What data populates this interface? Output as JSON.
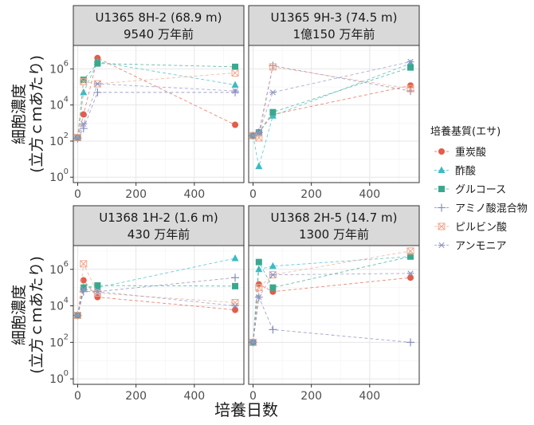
{
  "chart_data": {
    "type": "scatter",
    "facet_layout": "2x2",
    "xlabel": "培養日数",
    "ylabel_line1": "細胞濃度",
    "ylabel_line2": "(立方ｃｍあたり)",
    "xlim": [
      -15,
      570
    ],
    "xticks": [
      0,
      200,
      400
    ],
    "xtick_labels": [
      "0",
      "200",
      "400"
    ],
    "ylim_log10": [
      -0.3,
      7.3
    ],
    "yscale": "log",
    "yticks_exp": [
      0,
      2,
      4,
      6
    ],
    "ytick_labels": [
      {
        "base": "10",
        "exp": "0"
      },
      {
        "base": "10",
        "exp": "2"
      },
      {
        "base": "10",
        "exp": "4"
      },
      {
        "base": "10",
        "exp": "6"
      }
    ],
    "grid": true,
    "legend": {
      "title": "培養基質(エサ)",
      "placement": "right",
      "entries": [
        {
          "name": "重炭酸",
          "color": "#e35d4a",
          "marker": "circle"
        },
        {
          "name": "酢酸",
          "color": "#3bbbc4",
          "marker": "triangle"
        },
        {
          "name": "グルコース",
          "color": "#3aa88e",
          "marker": "square"
        },
        {
          "name": "アミノ酸混合物",
          "color": "#7f85b5",
          "marker": "plus"
        },
        {
          "name": "ピルビン酸",
          "color": "#f0a78e",
          "marker": "square-x"
        },
        {
          "name": "アンモニア",
          "color": "#8f96c2",
          "marker": "asterisk"
        }
      ]
    },
    "panels": [
      {
        "strip_line1": "U1365 8H-2 (68.9 m)",
        "strip_line2": "9540 万年前",
        "series": [
          {
            "name": "重炭酸",
            "x": [
              0,
              20,
              68,
              540
            ],
            "y": [
              150,
              3000,
              4000000,
              800
            ]
          },
          {
            "name": "酢酸",
            "x": [
              0,
              20,
              68,
              540
            ],
            "y": [
              160,
              50000,
              2500000,
              130000
            ]
          },
          {
            "name": "グルコース",
            "x": [
              0,
              20,
              68,
              540
            ],
            "y": [
              150,
              250000,
              2000000,
              1300000
            ]
          },
          {
            "name": "アミノ酸混合物",
            "x": [
              0,
              20,
              68,
              540
            ],
            "y": [
              140,
              500,
              50000,
              50000
            ]
          },
          {
            "name": "ピルビン酸",
            "x": [
              0,
              20,
              68,
              540
            ],
            "y": [
              160,
              200000,
              150000,
              600000
            ]
          },
          {
            "name": "アンモニア",
            "x": [
              0,
              20,
              68,
              540
            ],
            "y": [
              150,
              900,
              150000,
              60000
            ]
          }
        ]
      },
      {
        "strip_line1": "U1365 9H-3 (74.5 m)",
        "strip_line2": "1億150 万年前",
        "series": [
          {
            "name": "重炭酸",
            "x": [
              0,
              20,
              68,
              540
            ],
            "y": [
              200,
              300,
              3000,
              120000
            ]
          },
          {
            "name": "酢酸",
            "x": [
              0,
              20,
              68,
              540
            ],
            "y": [
              200,
              4,
              2500,
              2000000
            ]
          },
          {
            "name": "グルコース",
            "x": [
              0,
              20,
              68,
              540
            ],
            "y": [
              200,
              300,
              4000,
              1200000
            ]
          },
          {
            "name": "アミノ酸混合物",
            "x": [
              0,
              20,
              68,
              540
            ],
            "y": [
              200,
              300,
              1500000,
              60000
            ]
          },
          {
            "name": "ピルビン酸",
            "x": [
              0,
              20,
              68,
              540
            ],
            "y": [
              200,
              150,
              1300000,
              80000
            ]
          },
          {
            "name": "アンモニア",
            "x": [
              0,
              20,
              68,
              540
            ],
            "y": [
              200,
              300,
              50000,
              2500000
            ]
          }
        ]
      },
      {
        "strip_line1": "U1368 1H-2 (1.6 m)",
        "strip_line2": "430 万年前",
        "series": [
          {
            "name": "重炭酸",
            "x": [
              0,
              20,
              68,
              540
            ],
            "y": [
              3000,
              250000,
              30000,
              6000
            ]
          },
          {
            "name": "酢酸",
            "x": [
              0,
              20,
              68,
              540
            ],
            "y": [
              3000,
              100000,
              100000,
              4000000
            ]
          },
          {
            "name": "グルコース",
            "x": [
              0,
              20,
              68,
              540
            ],
            "y": [
              3000,
              100000,
              130000,
              120000
            ]
          },
          {
            "name": "アミノ酸混合物",
            "x": [
              0,
              20,
              68,
              540
            ],
            "y": [
              3000,
              60000,
              60000,
              350000
            ]
          },
          {
            "name": "ピルビン酸",
            "x": [
              0,
              20,
              68,
              540
            ],
            "y": [
              3000,
              2000000,
              50000,
              15000
            ]
          },
          {
            "name": "アンモニア",
            "x": [
              0,
              20,
              68,
              540
            ],
            "y": [
              3000,
              80000,
              60000,
              10000
            ]
          }
        ]
      },
      {
        "strip_line1": "U1368 2H-5 (14.7 m)",
        "strip_line2": "1300 万年前",
        "series": [
          {
            "name": "重炭酸",
            "x": [
              0,
              20,
              68,
              540
            ],
            "y": [
              100,
              150000,
              60000,
              350000
            ]
          },
          {
            "name": "酢酸",
            "x": [
              0,
              20,
              68,
              540
            ],
            "y": [
              100,
              1000000,
              1500000,
              5000000
            ]
          },
          {
            "name": "グルコース",
            "x": [
              0,
              20,
              68,
              540
            ],
            "y": [
              100,
              2500000,
              100000,
              5000000
            ]
          },
          {
            "name": "アミノ酸混合物",
            "x": [
              0,
              20,
              68,
              540
            ],
            "y": [
              100,
              30000,
              500,
              100
            ]
          },
          {
            "name": "ピルビン酸",
            "x": [
              0,
              20,
              68,
              540
            ],
            "y": [
              100,
              100000,
              500000,
              10000000
            ]
          },
          {
            "name": "アンモニア",
            "x": [
              0,
              20,
              68,
              540
            ],
            "y": [
              100,
              30000,
              500000,
              600000
            ]
          }
        ]
      }
    ]
  }
}
